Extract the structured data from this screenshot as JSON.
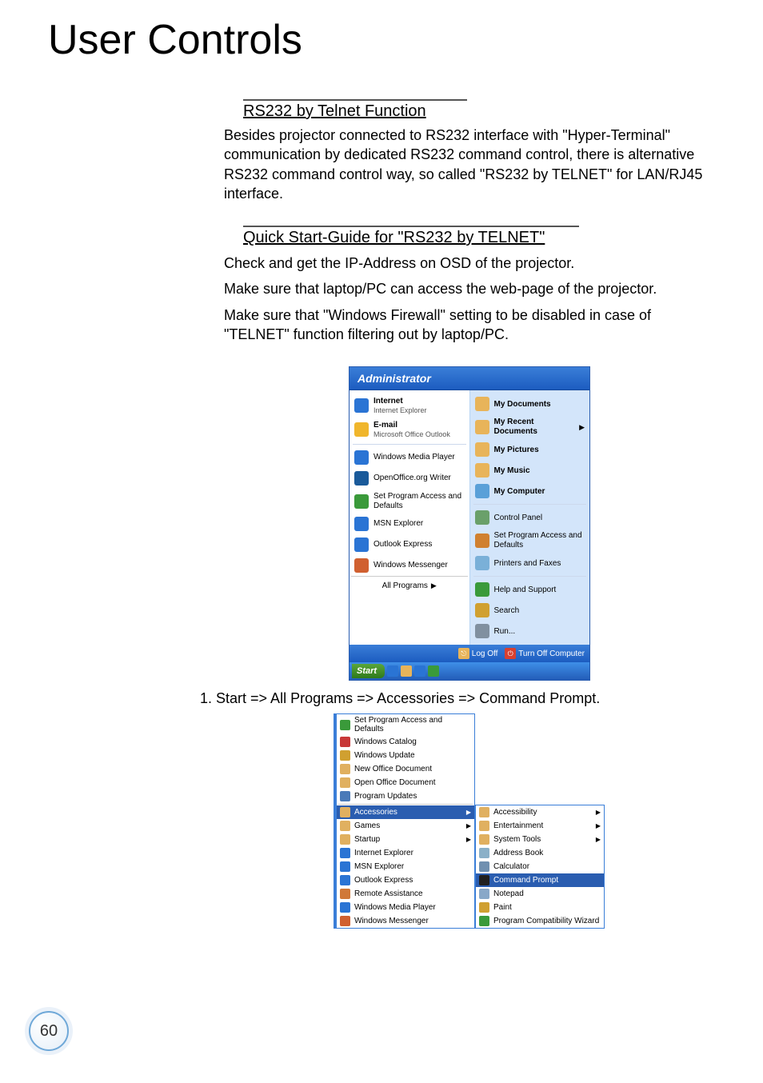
{
  "page_number": "60",
  "title": "User Controls",
  "section1": {
    "heading": "RS232 by Telnet Function",
    "body": "Besides projector connected to RS232 interface with \"Hyper-Terminal\" communication by dedicated RS232 command control, there is alternative RS232 command control way, so called \"RS232 by TELNET\" for LAN/RJ45 interface."
  },
  "section2": {
    "heading": "Quick Start-Guide for \"RS232 by TELNET\"",
    "p1": "Check and get the IP-Address on OSD of the projector.",
    "p2": "Make sure that laptop/PC can access the web-page of the projector.",
    "p3": "Make sure that \"Windows Firewall\" setting to be disabled in case of \"TELNET\" function filtering out by laptop/PC."
  },
  "step1": "1.  Start => All Programs => Accessories => Command Prompt.",
  "shot1": {
    "user": "Administrator",
    "left_pinned": [
      {
        "title": "Internet",
        "sub": "Internet Explorer",
        "color": "#2a74d4"
      },
      {
        "title": "E-mail",
        "sub": "Microsoft Office Outlook",
        "color": "#f0b62c"
      }
    ],
    "left_items": [
      {
        "label": "Windows Media Player",
        "color": "#2a74d4"
      },
      {
        "label": "OpenOffice.org Writer",
        "color": "#1a5a9a"
      },
      {
        "label": "Set Program Access and Defaults",
        "color": "#3a9a3a"
      },
      {
        "label": "MSN Explorer",
        "color": "#2a74d4"
      },
      {
        "label": "Outlook Express",
        "color": "#2a74d4"
      },
      {
        "label": "Windows Messenger",
        "color": "#d06030"
      }
    ],
    "all_programs": "All Programs",
    "right_items": [
      {
        "label": "My Documents",
        "bold": true,
        "color": "#e8b45a"
      },
      {
        "label": "My Recent Documents",
        "bold": true,
        "arrow": true,
        "color": "#e8b45a"
      },
      {
        "label": "My Pictures",
        "bold": true,
        "color": "#e8b45a"
      },
      {
        "label": "My Music",
        "bold": true,
        "color": "#e8b45a"
      },
      {
        "label": "My Computer",
        "bold": true,
        "color": "#5aa0d8"
      },
      {
        "sep": true
      },
      {
        "label": "Control Panel",
        "color": "#6aa06a"
      },
      {
        "label": "Set Program Access and Defaults",
        "color": "#d08030"
      },
      {
        "label": "Printers and Faxes",
        "color": "#7ab0d8"
      },
      {
        "sep": true
      },
      {
        "label": "Help and Support",
        "color": "#3a9a3a"
      },
      {
        "label": "Search",
        "color": "#d0a030"
      },
      {
        "label": "Run...",
        "color": "#8090a0"
      }
    ],
    "footer": {
      "logoff": "Log Off",
      "logoff_color": "#e8b45a",
      "turnoff": "Turn Off Computer",
      "turnoff_color": "#d84030"
    },
    "start": "Start"
  },
  "shot2": {
    "left_top": [
      {
        "label": "Set Program Access and Defaults",
        "color": "#3a9a3a"
      },
      {
        "label": "Windows Catalog",
        "color": "#c83838"
      },
      {
        "label": "Windows Update",
        "color": "#d0a030"
      },
      {
        "label": "New Office Document",
        "color": "#e0b060"
      },
      {
        "label": "Open Office Document",
        "color": "#e0b060"
      },
      {
        "label": "Program Updates",
        "color": "#4a7ab8"
      }
    ],
    "left_bottom": [
      {
        "label": "Accessories",
        "color": "#e0b060",
        "hl": true,
        "arrow": true
      },
      {
        "label": "Games",
        "color": "#e0b060",
        "arrow": true
      },
      {
        "label": "Startup",
        "color": "#e0b060",
        "arrow": true
      },
      {
        "label": "Internet Explorer",
        "color": "#2a74d4"
      },
      {
        "label": "MSN Explorer",
        "color": "#2a74d4"
      },
      {
        "label": "Outlook Express",
        "color": "#2a74d4"
      },
      {
        "label": "Remote Assistance",
        "color": "#d07838"
      },
      {
        "label": "Windows Media Player",
        "color": "#2a74d4"
      },
      {
        "label": "Windows Messenger",
        "color": "#d06030"
      }
    ],
    "right": [
      {
        "label": "Accessibility",
        "color": "#e0b060",
        "arrow": true
      },
      {
        "label": "Entertainment",
        "color": "#e0b060",
        "arrow": true
      },
      {
        "label": "System Tools",
        "color": "#e0b060",
        "arrow": true
      },
      {
        "label": "Address Book",
        "color": "#8ab0c8"
      },
      {
        "label": "Calculator",
        "color": "#7090b0"
      },
      {
        "label": "Command Prompt",
        "color": "#202020",
        "hl": true
      },
      {
        "label": "Notepad",
        "color": "#88a8c8"
      },
      {
        "label": "Paint",
        "color": "#d0a030"
      },
      {
        "label": "Program Compatibility Wizard",
        "color": "#3a9a3a"
      }
    ]
  }
}
